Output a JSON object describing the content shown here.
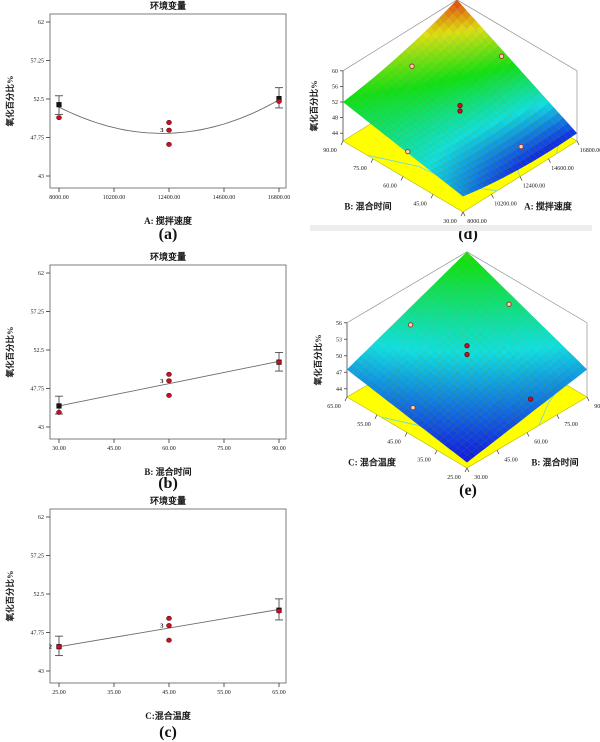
{
  "chart_data": [
    {
      "id": "a",
      "type": "scatter-curve",
      "caption": "(a)",
      "title": "环境变量",
      "xlabel": "A: 搅拌速度",
      "ylabel": "氧化百分比%",
      "x_range": [
        8000,
        16800
      ],
      "y_range": [
        43,
        62
      ],
      "x_tick_values": [
        8000,
        10200,
        12400,
        14600,
        16800
      ],
      "x_tick_labels": [
        "8000.00",
        "10200.00",
        "12400.00",
        "14600.00",
        "16800.00"
      ],
      "y_tick_values": [
        43,
        47.75,
        52.5,
        57.25,
        62
      ],
      "y_tick_labels": [
        "43",
        "47.75",
        "52.5",
        "57.25",
        "62"
      ],
      "fit_curve": {
        "kind": "quadratic",
        "points": [
          [
            8000,
            51.5
          ],
          [
            12600,
            48.3
          ],
          [
            16800,
            52.4
          ]
        ]
      },
      "mean_points": [
        {
          "x": 8000,
          "y": 51.8,
          "err_lo": 50.6,
          "err_hi": 52.9
        },
        {
          "x": 16800,
          "y": 52.55,
          "err_lo": 51.4,
          "err_hi": 53.9
        }
      ],
      "data_points": [
        {
          "x": 8000,
          "y": 50.2
        },
        {
          "x": 12400,
          "y": 49.6
        },
        {
          "x": 12400,
          "y": 48.65,
          "label": "3"
        },
        {
          "x": 12400,
          "y": 46.9
        },
        {
          "x": 16800,
          "y": 52.2
        }
      ]
    },
    {
      "id": "b",
      "type": "scatter-curve",
      "caption": "(b)",
      "title": "环境变量",
      "xlabel": "B: 混合时间",
      "ylabel": "氧化百分比%",
      "x_range": [
        30,
        90
      ],
      "y_range": [
        43,
        62
      ],
      "x_tick_values": [
        30,
        45,
        60,
        75,
        90
      ],
      "x_tick_labels": [
        "30.00",
        "45.00",
        "60.00",
        "75.00",
        "90.00"
      ],
      "y_tick_values": [
        43,
        47.75,
        52.5,
        57.25,
        62
      ],
      "y_tick_labels": [
        "43",
        "47.75",
        "52.5",
        "57.25",
        "62"
      ],
      "fit_curve": {
        "kind": "line",
        "points": [
          [
            30,
            45.6
          ],
          [
            90,
            51.1
          ]
        ]
      },
      "mean_points": [
        {
          "x": 30,
          "y": 45.6,
          "err_lo": 44.6,
          "err_hi": 46.8
        },
        {
          "x": 90,
          "y": 51.0,
          "err_lo": 49.9,
          "err_hi": 52.2
        }
      ],
      "data_points": [
        {
          "x": 30,
          "y": 44.8
        },
        {
          "x": 60,
          "y": 49.5
        },
        {
          "x": 60,
          "y": 48.7,
          "label": "3"
        },
        {
          "x": 60,
          "y": 46.9
        },
        {
          "x": 90,
          "y": 51.0
        }
      ]
    },
    {
      "id": "c",
      "type": "scatter-curve",
      "caption": "(c)",
      "title": "环境变量",
      "xlabel": "C:混合温度",
      "ylabel": "氧化百分比%",
      "x_range": [
        25,
        65
      ],
      "y_range": [
        43,
        62
      ],
      "x_tick_values": [
        25,
        35,
        45,
        55,
        65
      ],
      "x_tick_labels": [
        "25.00",
        "35.00",
        "45.00",
        "55.00",
        "65.00"
      ],
      "y_tick_values": [
        43,
        47.75,
        52.5,
        57.25,
        62
      ],
      "y_tick_labels": [
        "43",
        "47.75",
        "52.5",
        "57.25",
        "62"
      ],
      "fit_curve": {
        "kind": "line",
        "points": [
          [
            25,
            46.0
          ],
          [
            65,
            50.6
          ]
        ]
      },
      "mean_points": [
        {
          "x": 25,
          "y": 46.0,
          "err_lo": 44.9,
          "err_hi": 47.3,
          "label": "2"
        },
        {
          "x": 65,
          "y": 50.5,
          "err_lo": 49.3,
          "err_hi": 51.9
        }
      ],
      "data_points": [
        {
          "x": 25,
          "y": 46.0
        },
        {
          "x": 45,
          "y": 49.5
        },
        {
          "x": 45,
          "y": 48.6,
          "label": "3"
        },
        {
          "x": 45,
          "y": 46.8
        },
        {
          "x": 65,
          "y": 50.4
        }
      ]
    },
    {
      "id": "d",
      "type": "surface3d",
      "caption": "(d)",
      "zlabel": "氧化百分比%",
      "left_axis": {
        "label": "B: 混合时间",
        "tick_labels": [
          "90.00",
          "75.00",
          "60.00",
          "45.00",
          "30.00"
        ]
      },
      "right_axis": {
        "label": "A: 搅拌速度",
        "tick_labels": [
          "8000.00",
          "10200.00",
          "12400.00",
          "14600.00",
          "16800.00"
        ]
      },
      "z_tick_values": [
        44,
        48,
        52,
        56,
        60
      ],
      "z_tick_labels": [
        "44",
        "48",
        "52",
        "56",
        "60"
      ],
      "surface_model": {
        "c0": 46,
        "ca": -2,
        "cb": 6,
        "cab": 10,
        "caa": 4,
        "cbb": 0
      },
      "color_domain": [
        43.5,
        60
      ],
      "hue_range": [
        238,
        14
      ],
      "floor_contours": [
        [
          [
            0.0,
            0.8
          ],
          [
            0.14,
            0.5
          ],
          [
            0.18,
            0.18
          ],
          [
            0.3,
            0.0
          ]
        ],
        [
          [
            0.5,
            0.0
          ],
          [
            0.62,
            0.18
          ],
          [
            0.82,
            0.28
          ],
          [
            1.0,
            0.33
          ]
        ],
        [
          [
            0.82,
            0.0
          ],
          [
            0.93,
            0.08
          ],
          [
            1.0,
            0.12
          ]
        ]
      ],
      "design_points": [
        {
          "a": 0.5,
          "b": 0.5,
          "on": "surface",
          "filled": true,
          "lift": 1.6
        },
        {
          "a": 0.5,
          "b": 0.5,
          "on": "surface",
          "filled": true,
          "lift": 0.2
        },
        {
          "a": 0.5,
          "b": 0.9,
          "on": "surface",
          "filled": false
        },
        {
          "a": 0.97,
          "b": 0.6,
          "on": "surface",
          "filled": false
        },
        {
          "a": 0.2,
          "b": 0.65,
          "on": "floor",
          "filled": false
        },
        {
          "a": 0.72,
          "b": 0.2,
          "on": "floor",
          "filled": false
        }
      ]
    },
    {
      "id": "e",
      "type": "surface3d",
      "caption": "(e)",
      "zlabel": "氧化百分比%",
      "left_axis": {
        "label": "C: 混合温度",
        "tick_labels": [
          "65.00",
          "55.00",
          "45.00",
          "35.00",
          "25.00"
        ]
      },
      "right_axis": {
        "label": "B: 混合时间",
        "tick_labels": [
          "30.00",
          "45.00",
          "60.00",
          "75.00",
          "90.00"
        ]
      },
      "z_tick_values": [
        44,
        47,
        50,
        53,
        56
      ],
      "z_tick_labels": [
        "44",
        "47",
        "50",
        "53",
        "56"
      ],
      "surface_model": {
        "c0": 43.5,
        "ca": 4,
        "cb": 4,
        "cab": 4.5,
        "caa": 0,
        "cbb": 0
      },
      "color_domain": [
        43.5,
        56
      ],
      "hue_range": [
        238,
        112
      ],
      "floor_contours": [
        [
          [
            0.0,
            0.72
          ],
          [
            0.12,
            0.45
          ],
          [
            0.1,
            0.2
          ]
        ],
        [
          [
            0.6,
            0.0
          ],
          [
            0.8,
            0.12
          ],
          [
            1.0,
            0.2
          ]
        ]
      ],
      "design_points": [
        {
          "a": 0.5,
          "b": 0.5,
          "on": "surface",
          "filled": true,
          "lift": 3.2
        },
        {
          "a": 0.5,
          "b": 0.5,
          "on": "surface",
          "filled": true,
          "lift": 1.6
        },
        {
          "a": 0.45,
          "b": 0.92,
          "on": "surface",
          "filled": false
        },
        {
          "a": 0.95,
          "b": 0.6,
          "on": "surface",
          "filled": false
        },
        {
          "a": 0.2,
          "b": 0.65,
          "on": "floor",
          "filled": false
        },
        {
          "a": 0.75,
          "b": 0.22,
          "on": "floor",
          "filled": true
        }
      ]
    }
  ],
  "colors": {
    "floor": "#ffff00",
    "floor_edge": "#b9b900",
    "contour": "#7fd8cc",
    "frame": "#8f8f8f",
    "curve": "#6b6b6b",
    "error_bar": "#4a4a4a",
    "square_black": "#141414",
    "point_red": "#cc1021",
    "point_red_dark": "#6e0a12",
    "open_point_fill": "#f0d8b6",
    "text": "#1a1a1a"
  }
}
